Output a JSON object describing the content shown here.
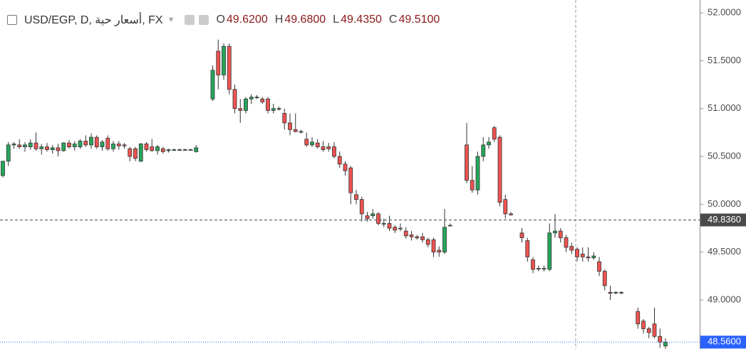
{
  "chart_data": {
    "type": "candlestick",
    "legend": {
      "symbol": "USD/EGP, D, أسعار حية, FX",
      "items": [
        {
          "key": "O",
          "value": "49.6200"
        },
        {
          "key": "H",
          "value": "49.6800"
        },
        {
          "key": "L",
          "value": "49.4350"
        },
        {
          "key": "C",
          "value": "49.5100"
        }
      ]
    },
    "up_color": "#26a65b",
    "down_color": "#ef5350",
    "ylim": [
      48.488,
      52.134
    ],
    "yticks": [
      {
        "value": 49,
        "label": "49.0000"
      },
      {
        "value": 49.5,
        "label": "49.5000"
      },
      {
        "value": 50,
        "label": "50.0000"
      },
      {
        "value": 50.5,
        "label": "50.5000"
      },
      {
        "value": 51,
        "label": "51.0000"
      },
      {
        "value": 51.5,
        "label": "51.5000"
      },
      {
        "value": 52,
        "label": "52.0000"
      }
    ],
    "price_lines": [
      {
        "value": 49.836,
        "label": "49.8360",
        "color": "#4a4a4a"
      },
      {
        "value": 48.56,
        "label": "48.5600",
        "color": "#2962ff"
      }
    ],
    "open": [
      50.3,
      50.45,
      50.62,
      50.62,
      50.6,
      50.6,
      50.64,
      50.58,
      50.6,
      50.57,
      50.59,
      50.56,
      50.64,
      50.6,
      50.6,
      50.66,
      50.62,
      50.7,
      50.6,
      50.69,
      50.58,
      50.63,
      50.62,
      50.58,
      50.58,
      50.45,
      50.63,
      50.6,
      50.56,
      50.58,
      50.56,
      50.57,
      50.57,
      50.57,
      50.57,
      50.55,
      null,
      null,
      51.1,
      51.6,
      51.35,
      51.65,
      51.2,
      51.0,
      50.98,
      51.1,
      51.12,
      51.1,
      51.1,
      50.98,
      51.0,
      50.95,
      50.85,
      50.78,
      50.76,
      50.68,
      50.62,
      50.64,
      50.6,
      50.6,
      50.6,
      50.5,
      50.42,
      50.38,
      50.1,
      50.05,
      49.88,
      49.88,
      49.9,
      49.8,
      49.8,
      49.76,
      49.75,
      49.72,
      49.68,
      49.66,
      49.66,
      49.63,
      49.63,
      49.52,
      49.5,
      49.78,
      null,
      null,
      50.62,
      50.25,
      50.15,
      50.5,
      50.62,
      50.8,
      50.7,
      50.05,
      49.9,
      null,
      49.7,
      49.62,
      49.42,
      49.33,
      49.33,
      49.32,
      49.7,
      49.72,
      49.65,
      49.56,
      49.53,
      49.48,
      49.45,
      49.44,
      49.4,
      49.3,
      49.08,
      49.08,
      49.08,
      null,
      null,
      48.88,
      48.78,
      48.7,
      48.75,
      48.62,
      48.52
    ],
    "high": [
      50.45,
      50.65,
      50.65,
      50.68,
      50.65,
      50.68,
      50.75,
      50.63,
      50.64,
      50.62,
      50.63,
      50.65,
      50.67,
      50.66,
      50.68,
      50.72,
      50.74,
      50.72,
      50.67,
      50.72,
      50.66,
      50.66,
      50.64,
      50.6,
      50.6,
      50.64,
      50.65,
      50.68,
      50.62,
      50.6,
      50.58,
      50.58,
      50.58,
      50.58,
      50.58,
      50.62,
      null,
      null,
      51.45,
      51.72,
      51.68,
      51.68,
      51.25,
      51.1,
      51.12,
      51.15,
      51.14,
      51.12,
      51.12,
      51.05,
      51.02,
      51.0,
      50.95,
      50.95,
      50.78,
      50.75,
      50.7,
      50.68,
      50.66,
      50.64,
      50.65,
      50.55,
      50.45,
      50.4,
      50.15,
      50.08,
      49.92,
      49.95,
      49.92,
      49.85,
      49.88,
      49.78,
      49.8,
      49.76,
      49.72,
      49.68,
      49.7,
      49.65,
      49.65,
      49.56,
      49.95,
      49.8,
      null,
      null,
      50.85,
      50.4,
      50.55,
      50.7,
      50.7,
      50.82,
      50.72,
      50.1,
      49.92,
      null,
      49.75,
      49.65,
      49.45,
      49.36,
      49.36,
      49.8,
      49.9,
      49.75,
      49.68,
      49.6,
      49.55,
      49.55,
      49.55,
      49.5,
      49.45,
      49.32,
      49.15,
      49.09,
      49.09,
      null,
      null,
      48.92,
      48.8,
      48.72,
      48.92,
      48.7,
      48.6
    ],
    "low": [
      50.28,
      50.4,
      50.58,
      50.58,
      50.55,
      50.57,
      50.56,
      50.52,
      50.55,
      50.53,
      50.5,
      50.55,
      50.58,
      50.56,
      50.58,
      50.6,
      50.58,
      50.58,
      50.56,
      50.56,
      50.55,
      50.57,
      50.58,
      50.45,
      50.45,
      50.44,
      50.55,
      50.55,
      50.52,
      50.53,
      50.54,
      50.56,
      50.56,
      50.56,
      50.56,
      50.54,
      null,
      null,
      51.08,
      51.2,
      51.3,
      51.15,
      50.95,
      50.85,
      50.95,
      51.05,
      51.1,
      51.05,
      50.95,
      50.95,
      50.98,
      50.78,
      50.72,
      50.75,
      50.74,
      50.6,
      50.6,
      50.58,
      50.55,
      50.55,
      50.48,
      50.38,
      50.3,
      50.0,
      50.0,
      49.82,
      49.82,
      49.85,
      49.78,
      49.76,
      49.72,
      49.7,
      49.72,
      49.64,
      49.62,
      49.63,
      49.6,
      49.55,
      49.45,
      49.45,
      49.48,
      49.77,
      null,
      null,
      50.22,
      50.12,
      50.1,
      50.45,
      50.58,
      50.65,
      49.98,
      49.85,
      49.88,
      null,
      49.6,
      49.4,
      49.28,
      49.3,
      49.3,
      49.3,
      49.65,
      49.6,
      49.5,
      49.48,
      49.4,
      49.4,
      49.4,
      49.42,
      49.25,
      49.1,
      49.0,
      49.06,
      49.06,
      null,
      null,
      48.7,
      48.65,
      48.6,
      48.6,
      48.5,
      48.49
    ],
    "close": [
      50.45,
      50.62,
      50.63,
      50.6,
      50.62,
      50.64,
      50.58,
      50.6,
      50.57,
      50.59,
      50.56,
      50.64,
      50.6,
      50.63,
      50.66,
      50.62,
      50.7,
      50.6,
      50.65,
      50.58,
      50.63,
      50.61,
      50.61,
      50.5,
      50.48,
      50.63,
      50.57,
      50.56,
      50.6,
      50.55,
      50.57,
      50.57,
      50.57,
      50.57,
      50.57,
      50.59,
      null,
      null,
      51.4,
      51.35,
      51.65,
      51.2,
      51.0,
      50.98,
      51.1,
      51.12,
      51.12,
      51.07,
      50.98,
      51.0,
      51.0,
      50.85,
      50.78,
      50.76,
      50.76,
      50.62,
      50.65,
      50.6,
      50.57,
      50.58,
      50.5,
      50.42,
      50.35,
      50.12,
      50.05,
      49.9,
      49.85,
      49.9,
      49.8,
      49.8,
      49.75,
      49.73,
      49.75,
      49.67,
      49.66,
      49.65,
      49.63,
      49.58,
      49.5,
      49.5,
      49.76,
      49.78,
      null,
      null,
      50.25,
      50.15,
      50.5,
      50.62,
      50.65,
      50.68,
      50.02,
      49.9,
      49.89,
      null,
      49.65,
      49.45,
      49.32,
      49.33,
      49.33,
      49.7,
      49.72,
      49.65,
      49.55,
      49.52,
      49.45,
      49.45,
      49.44,
      49.46,
      49.3,
      49.15,
      49.07,
      49.08,
      49.08,
      null,
      null,
      48.75,
      48.7,
      48.66,
      48.62,
      48.56,
      48.56
    ]
  }
}
